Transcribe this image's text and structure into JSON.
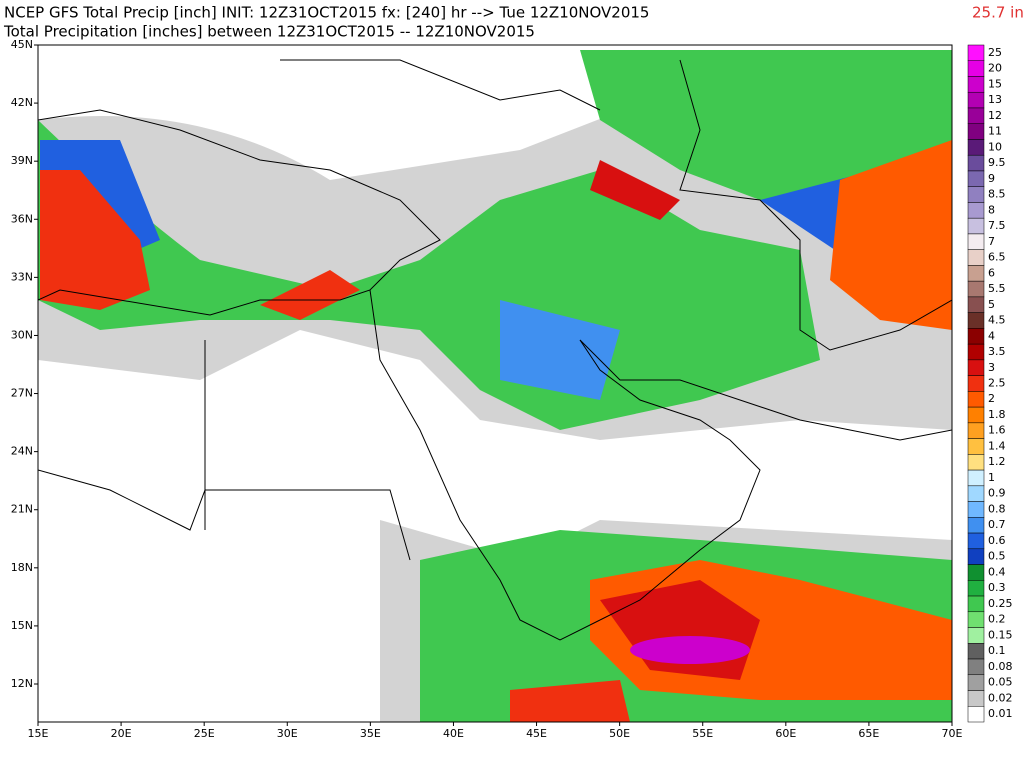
{
  "header": {
    "line1": "NCEP GFS Total Precip [inch] INIT: 12Z31OCT2015 fx: [240] hr --> Tue 12Z10NOV2015",
    "line2": "Total Precipitation [inches] between 12Z31OCT2015 -- 12Z10NOV2015",
    "max_value": "25.7 in"
  },
  "lat_labels": [
    "45N",
    "42N",
    "39N",
    "36N",
    "33N",
    "30N",
    "27N",
    "24N",
    "21N",
    "18N",
    "15N",
    "12N"
  ],
  "lon_labels": [
    "15E",
    "20E",
    "25E",
    "30E",
    "35E",
    "40E",
    "45E",
    "50E",
    "55E",
    "60E",
    "65E",
    "70E"
  ],
  "legend": [
    {
      "label": "25",
      "color": "#ff10ff"
    },
    {
      "label": "20",
      "color": "#e600e6"
    },
    {
      "label": "15",
      "color": "#cc00cc"
    },
    {
      "label": "13",
      "color": "#b300b3"
    },
    {
      "label": "12",
      "color": "#990099"
    },
    {
      "label": "11",
      "color": "#800080"
    },
    {
      "label": "10",
      "color": "#5a1a78"
    },
    {
      "label": "9.5",
      "color": "#6a4c9c"
    },
    {
      "label": "9",
      "color": "#7b68b0"
    },
    {
      "label": "8.5",
      "color": "#9080c0"
    },
    {
      "label": "8",
      "color": "#a89ad0"
    },
    {
      "label": "7.5",
      "color": "#c8c0e0"
    },
    {
      "label": "7",
      "color": "#f4ecf0"
    },
    {
      "label": "6.5",
      "color": "#e8d0c8"
    },
    {
      "label": "6",
      "color": "#c8a090"
    },
    {
      "label": "5.5",
      "color": "#a87870"
    },
    {
      "label": "5",
      "color": "#885050"
    },
    {
      "label": "4.5",
      "color": "#6a3028"
    },
    {
      "label": "4",
      "color": "#8b0000"
    },
    {
      "label": "3.5",
      "color": "#b00000"
    },
    {
      "label": "3",
      "color": "#d81010"
    },
    {
      "label": "2.5",
      "color": "#f03010"
    },
    {
      "label": "2",
      "color": "#ff5a00"
    },
    {
      "label": "1.8",
      "color": "#ff8000"
    },
    {
      "label": "1.6",
      "color": "#ffa020"
    },
    {
      "label": "1.4",
      "color": "#ffc040"
    },
    {
      "label": "1.2",
      "color": "#ffe080"
    },
    {
      "label": "1",
      "color": "#d0f0ff"
    },
    {
      "label": "0.9",
      "color": "#a0d8ff"
    },
    {
      "label": "0.8",
      "color": "#70b8ff"
    },
    {
      "label": "0.7",
      "color": "#4090f0"
    },
    {
      "label": "0.6",
      "color": "#2060e0"
    },
    {
      "label": "0.5",
      "color": "#1040c0"
    },
    {
      "label": "0.4",
      "color": "#109030"
    },
    {
      "label": "0.3",
      "color": "#20b040"
    },
    {
      "label": "0.25",
      "color": "#40c850"
    },
    {
      "label": "0.2",
      "color": "#70e070"
    },
    {
      "label": "0.15",
      "color": "#a0f0a0"
    },
    {
      "label": "0.1",
      "color": "#606060"
    },
    {
      "label": "0.08",
      "color": "#808080"
    },
    {
      "label": "0.05",
      "color": "#a0a0a0"
    },
    {
      "label": "0.02",
      "color": "#c8c8c8"
    },
    {
      "label": "0.01",
      "color": "#ffffff"
    }
  ]
}
